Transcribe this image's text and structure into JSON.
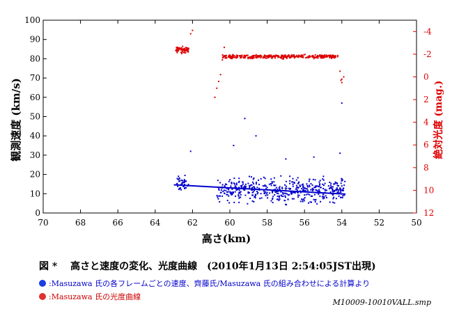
{
  "chart_data": {
    "type": "scatter",
    "xlabel": "高さ(km)",
    "x_range": [
      70,
      50
    ],
    "x_ticks": [
      70,
      68,
      66,
      64,
      62,
      60,
      58,
      56,
      54,
      52,
      50
    ],
    "ylabel_left": "観測速度 (km/s)",
    "y_left_range": [
      0,
      100
    ],
    "y_left_ticks": [
      0,
      10,
      20,
      30,
      40,
      50,
      60,
      70,
      80,
      90,
      100
    ],
    "ylabel_right": "絶対光度 (mag.)",
    "y_right_range": [
      12,
      -5
    ],
    "y_right_ticks": [
      -4,
      -2,
      0,
      2,
      4,
      6,
      8,
      10,
      12
    ],
    "series": [
      {
        "name": "velocity",
        "color": "#0000cc",
        "axis": "left",
        "kind": "scatter",
        "clusters": [
          {
            "x_range": [
              62.9,
              62.2
            ],
            "y_mean": 15,
            "y_spread": 6,
            "n": 40
          },
          {
            "x_range": [
              60.7,
              53.8
            ],
            "y_mean": 12,
            "y_spread": 9,
            "n": 480
          }
        ],
        "outliers": [
          [
            62.1,
            32
          ],
          [
            59.2,
            49
          ],
          [
            58.6,
            40
          ],
          [
            59.8,
            35
          ],
          [
            54.1,
            31
          ],
          [
            54.0,
            57
          ],
          [
            55.5,
            29
          ],
          [
            57.0,
            28
          ]
        ]
      },
      {
        "name": "velocity-fit",
        "color": "#0000cc",
        "axis": "left",
        "kind": "line",
        "x": [
          63.0,
          53.8
        ],
        "y": [
          14.6,
          9.8
        ]
      },
      {
        "name": "brightness",
        "color": "#dd0000",
        "axis": "right",
        "kind": "scatter",
        "clusters": [
          {
            "x_range": [
              62.9,
              62.2
            ],
            "y_mean": -2.4,
            "y_spread": 0.4,
            "n": 60
          },
          {
            "x_range": [
              60.4,
              54.2
            ],
            "y_mean": -1.8,
            "y_spread": 0.25,
            "n": 360
          }
        ],
        "outliers": [
          [
            62.0,
            -4.1
          ],
          [
            62.1,
            -3.8
          ],
          [
            60.8,
            1.8
          ],
          [
            60.7,
            1.0
          ],
          [
            60.6,
            0.4
          ],
          [
            60.5,
            -0.2
          ],
          [
            60.4,
            -1.5
          ],
          [
            60.3,
            -2.6
          ],
          [
            54.1,
            -0.5
          ],
          [
            54.0,
            0.2
          ],
          [
            54.0,
            0.5
          ],
          [
            53.9,
            0.0
          ],
          [
            54.05,
            0.3
          ]
        ]
      }
    ]
  },
  "caption": "図 *　 高さと速度の変化、光度曲線　(2010年1月13日 2:54:05JST出現)",
  "legend": {
    "blue": ":Masuzawa 氏の各フレームごとの速度、齊藤氏/Masuzawa 氏の組み合わせによる計算より",
    "red": ":Masuzawa 氏の光度曲線"
  },
  "filename": "M10009-10010VALL.smp",
  "colors": {
    "blue": "#0000cc",
    "red": "#dd0000",
    "legend_blue_dot": "#1a3ee0",
    "legend_red_dot": "#e03030"
  }
}
